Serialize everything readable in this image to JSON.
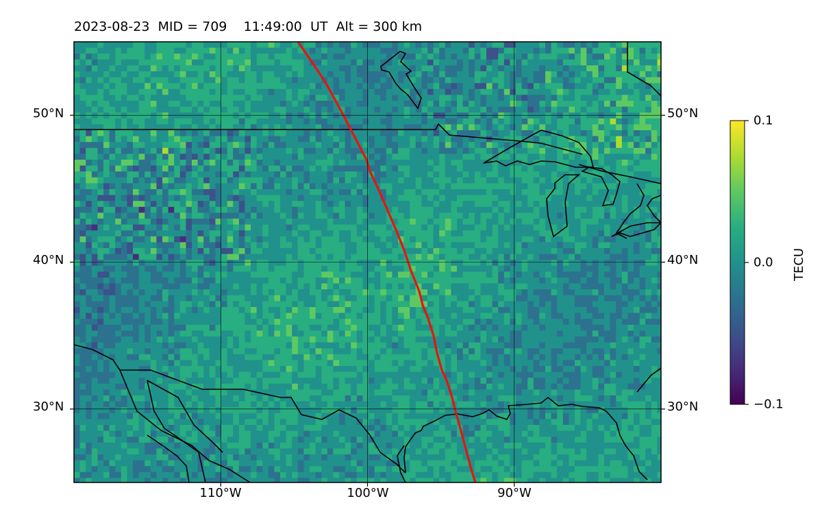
{
  "title": "2023-08-23  MID = 709    11:49:00  UT  Alt = 300 km",
  "map": {
    "lon_range": [
      -120,
      -80
    ],
    "lat_range": [
      25,
      55
    ],
    "lat_labels": [
      "50°N",
      "40°N",
      "30°N"
    ],
    "lat_values": [
      50,
      40,
      30
    ],
    "lon_labels": [
      "110°W",
      "100°W",
      "90°W"
    ],
    "lon_values": [
      -110,
      -100,
      -90
    ],
    "grid": true,
    "terminator_color": "#e8140f",
    "coastline_color": "#000000"
  },
  "colorbar": {
    "label": "TECU",
    "min": -0.1,
    "max": 0.1,
    "tick_labels": [
      "0.1",
      "0.0",
      "−0.1"
    ],
    "colormap": "viridis"
  }
}
